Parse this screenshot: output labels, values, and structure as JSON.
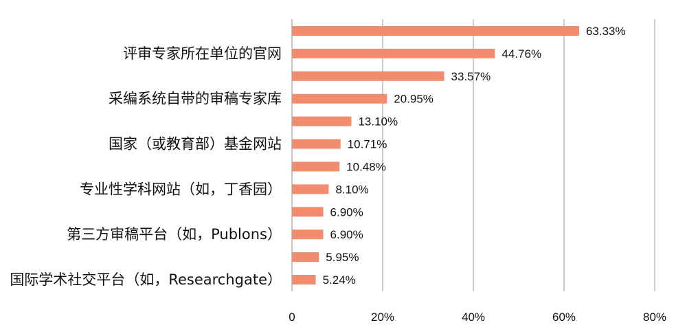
{
  "chart_data": {
    "type": "bar",
    "orientation": "horizontal",
    "categories": [
      "",
      "评审专家所在单位的官网",
      "",
      "采编系统自带的审稿专家库",
      "",
      "国家（或教育部）基金网站",
      "",
      "专业性学科网站（如，丁香园）",
      "",
      "第三方审稿平台（如，Publons）",
      "",
      "国际学术社交平台（如，Researchgate）"
    ],
    "values": [
      63.33,
      44.76,
      33.57,
      20.95,
      13.1,
      10.71,
      10.48,
      8.1,
      6.9,
      6.9,
      5.95,
      5.24
    ],
    "value_labels": [
      "63.33%",
      "44.76%",
      "33.57%",
      "20.95%",
      "13.10%",
      "10.71%",
      "10.48%",
      "8.10%",
      "6.90%",
      "6.90%",
      "5.95%",
      "5.24%"
    ],
    "x_ticks": [
      "0",
      "20%",
      "40%",
      "60%",
      "80%"
    ],
    "xlim": [
      0,
      80
    ],
    "grid": "vertical",
    "bar_color": "#f28c6f",
    "title": "",
    "xlabel": "",
    "ylabel": ""
  }
}
